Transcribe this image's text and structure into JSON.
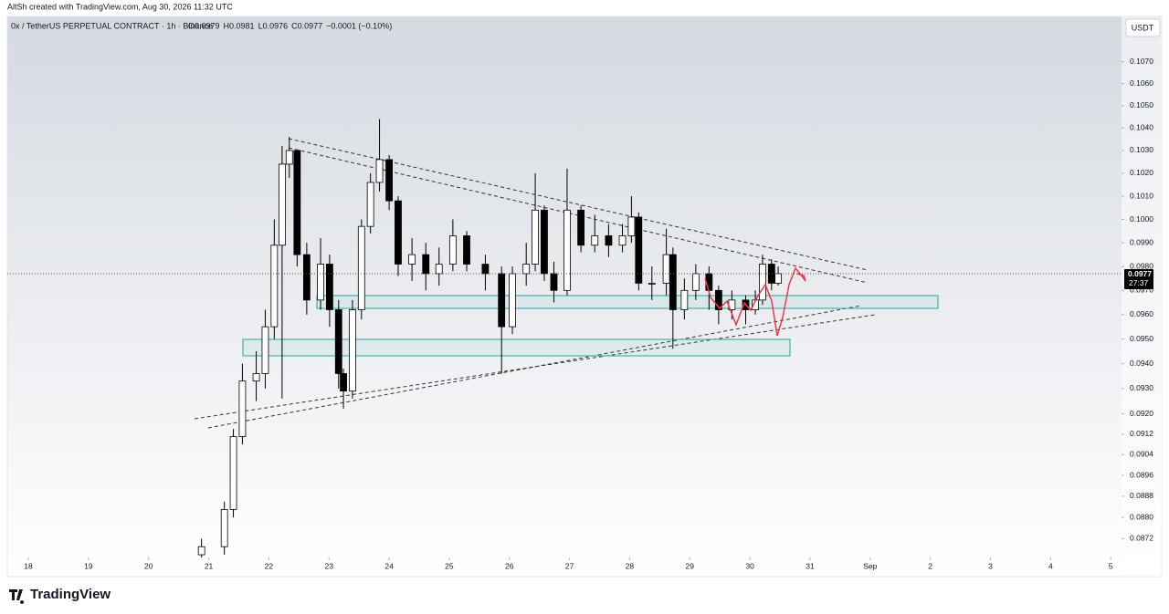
{
  "chart_data": {
    "type": "candlestick",
    "credit": "AltSh created with TradingView.com, Aug 30, 2026 11:32 UTC",
    "symbol": "0x / TetherUS PERPETUAL CONTRACT · 1h · Binance",
    "legend_values": [
      "O0.0979",
      "H0.0981",
      "L0.0976",
      "C0.0977",
      "−0.0001 (−0.10%)"
    ],
    "currency": "USDT",
    "last_price": 0.0977,
    "countdown": "27:37",
    "brand": "TradingView",
    "log_scale": true,
    "grid": false,
    "up_color": "#ffffff",
    "down_color": "#000000",
    "wick_color": "#000000",
    "x": [
      20.88,
      21.26,
      21.41,
      21.56,
      21.79,
      21.94,
      22.09,
      22.22,
      22.34,
      22.47,
      22.63,
      22.86,
      23.01,
      23.16,
      23.24,
      23.39,
      23.54,
      23.69,
      23.84,
      24.0,
      24.15,
      24.38,
      24.61,
      24.83,
      25.06,
      25.29,
      25.6,
      25.87,
      26.05,
      26.28,
      26.43,
      26.58,
      26.74,
      26.96,
      27.19,
      27.42,
      27.65,
      27.88,
      28.03,
      28.15,
      28.37,
      28.61,
      28.72,
      28.91,
      29.1,
      29.32,
      29.48,
      29.7,
      29.93,
      30.09,
      30.21,
      30.36,
      30.47
    ],
    "open": [
      0.0866,
      0.0869,
      0.0883,
      0.0911,
      0.0933,
      0.0936,
      0.0955,
      0.0989,
      0.1024,
      0.103,
      0.0985,
      0.0966,
      0.0981,
      0.0962,
      0.0936,
      0.0929,
      0.0962,
      0.0997,
      0.1016,
      0.1026,
      0.1008,
      0.0981,
      0.0985,
      0.0977,
      0.0981,
      0.0993,
      0.0981,
      0.0977,
      0.0955,
      0.0977,
      0.0981,
      0.1004,
      0.0977,
      0.097,
      0.1004,
      0.0989,
      0.0993,
      0.0989,
      0.0993,
      0.1001,
      0.0973,
      0.0973,
      0.0985,
      0.0962,
      0.097,
      0.0977,
      0.097,
      0.0962,
      0.0966,
      0.0962,
      0.0966,
      0.0981,
      0.0973
    ],
    "high": [
      0.0872,
      0.0886,
      0.0914,
      0.094,
      0.0945,
      0.0962,
      0.1,
      0.1032,
      0.1036,
      0.103,
      0.099,
      0.0992,
      0.0985,
      0.0966,
      0.0938,
      0.0966,
      0.1,
      0.102,
      0.1044,
      0.1028,
      0.101,
      0.0992,
      0.099,
      0.0988,
      0.1,
      0.0995,
      0.0985,
      0.098,
      0.098,
      0.099,
      0.102,
      0.1006,
      0.0982,
      0.1022,
      0.1006,
      0.1002,
      0.0998,
      0.0998,
      0.101,
      0.1003,
      0.098,
      0.0996,
      0.0988,
      0.0975,
      0.0981,
      0.098,
      0.0972,
      0.097,
      0.0968,
      0.097,
      0.0985,
      0.0983,
      0.098
    ],
    "low": [
      0.0865,
      0.0866,
      0.088,
      0.0908,
      0.0925,
      0.093,
      0.095,
      0.0926,
      0.1018,
      0.098,
      0.096,
      0.0962,
      0.0955,
      0.093,
      0.0922,
      0.0926,
      0.0958,
      0.0994,
      0.1012,
      0.1004,
      0.0976,
      0.0974,
      0.097,
      0.0972,
      0.0978,
      0.0978,
      0.097,
      0.0936,
      0.0952,
      0.0972,
      0.0978,
      0.0974,
      0.0965,
      0.0968,
      0.0986,
      0.0986,
      0.0984,
      0.0986,
      0.099,
      0.097,
      0.0966,
      0.0968,
      0.0946,
      0.0958,
      0.0966,
      0.0962,
      0.0956,
      0.0958,
      0.0956,
      0.096,
      0.0964,
      0.097,
      0.0972
    ],
    "close": [
      0.0869,
      0.0883,
      0.0911,
      0.0933,
      0.0936,
      0.0955,
      0.0989,
      0.1024,
      0.103,
      0.0985,
      0.0966,
      0.0981,
      0.0962,
      0.0936,
      0.0929,
      0.0962,
      0.0997,
      0.1016,
      0.1026,
      0.1008,
      0.0981,
      0.0985,
      0.0977,
      0.0981,
      0.0993,
      0.0981,
      0.0977,
      0.0955,
      0.0977,
      0.0981,
      0.1004,
      0.0977,
      0.097,
      0.1004,
      0.0989,
      0.0993,
      0.0989,
      0.0993,
      0.1001,
      0.0973,
      0.0973,
      0.0985,
      0.0962,
      0.097,
      0.0977,
      0.097,
      0.0962,
      0.0966,
      0.0962,
      0.0966,
      0.0981,
      0.0973,
      0.0977
    ],
    "xlim": [
      17.65,
      36.18
    ],
    "xticks": [
      18,
      19,
      20,
      21,
      22,
      23,
      24,
      25,
      26,
      27,
      28,
      29,
      30,
      31,
      {
        "value": 32,
        "label": "Sep"
      },
      {
        "value": 33,
        "label": "2"
      },
      {
        "value": 34,
        "label": "3"
      },
      {
        "value": 35,
        "label": "4"
      },
      {
        "value": 36,
        "label": "5"
      }
    ],
    "ylim": [
      0.0865,
      0.1091
    ],
    "yticks": [
      {
        "value": 0.107,
        "label": "0.1070"
      },
      {
        "value": 0.106,
        "label": "0.1060"
      },
      {
        "value": 0.105,
        "label": "0.1050"
      },
      {
        "value": 0.104,
        "label": "0.1040"
      },
      {
        "value": 0.103,
        "label": "0.1030"
      },
      {
        "value": 0.102,
        "label": "0.1020"
      },
      {
        "value": 0.101,
        "label": "0.1010"
      },
      {
        "value": 0.1,
        "label": "0.1000"
      },
      {
        "value": 0.099,
        "label": "0.0990"
      },
      {
        "value": 0.098,
        "label": "0.0980"
      },
      {
        "value": 0.097,
        "label": "0.0970"
      },
      {
        "value": 0.096,
        "label": "0.0960"
      },
      {
        "value": 0.095,
        "label": "0.0950"
      },
      {
        "value": 0.094,
        "label": "0.0940"
      },
      {
        "value": 0.093,
        "label": "0.0930"
      },
      {
        "value": 0.092,
        "label": "0.0920"
      },
      0.0912,
      0.0904,
      0.0896,
      0.0888,
      {
        "value": 0.088,
        "label": "0.0880"
      },
      0.0872
    ]
  }
}
